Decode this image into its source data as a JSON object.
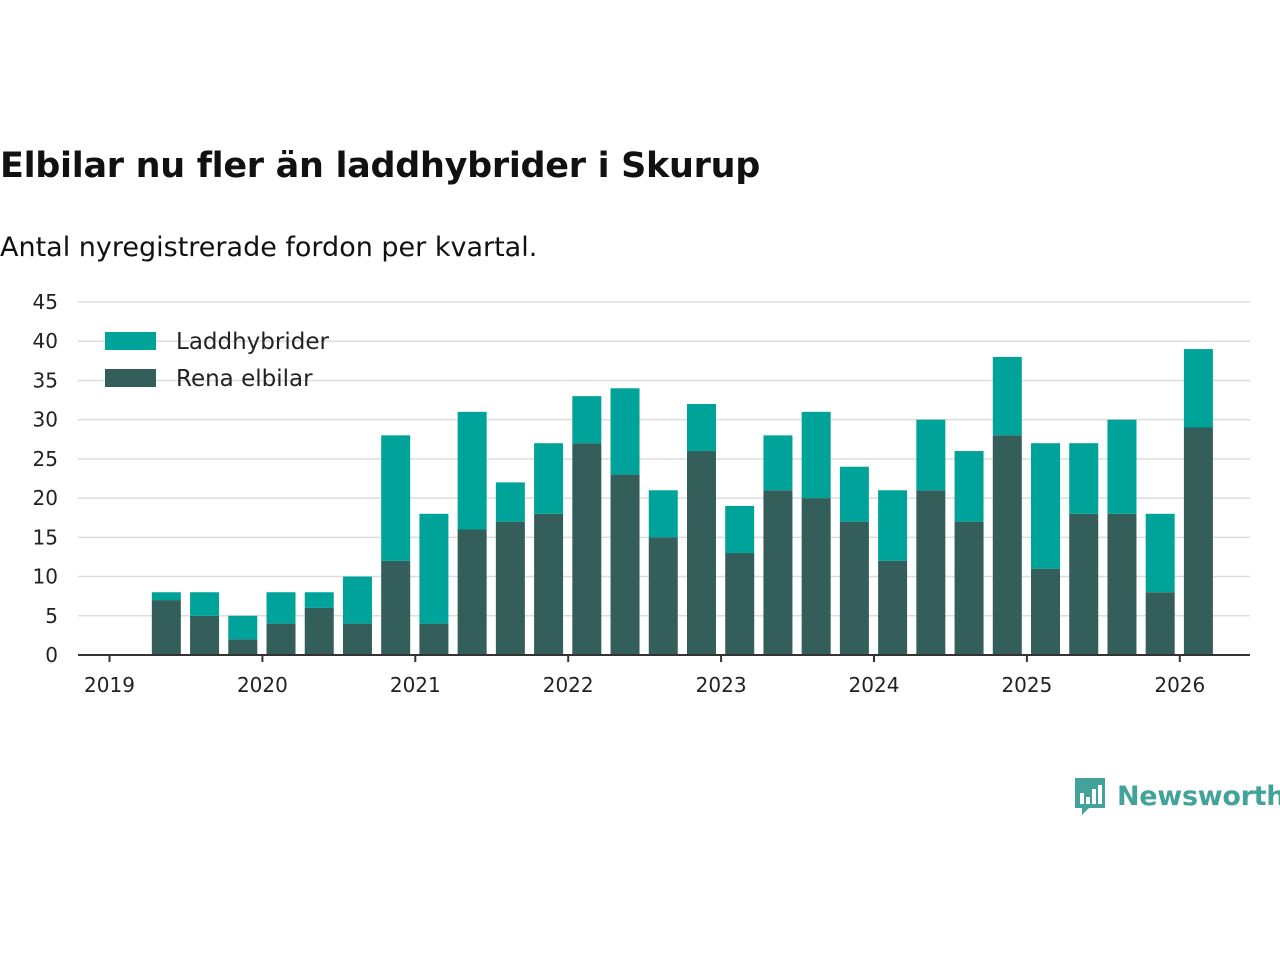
{
  "title": "Elbilar nu fler än laddhybrider i Skurup",
  "subtitle": "Antal nyregistrerade fordon per kvartal.",
  "brand": "Newsworthy",
  "colors": {
    "laddhybrider": "#00a39a",
    "elbilar": "#335e5a",
    "grid": "#dddddd",
    "axis": "#333333",
    "brand": "#43a39a"
  },
  "chart_data": {
    "type": "bar",
    "stacked": true,
    "title": "Elbilar nu fler än laddhybrider i Skurup",
    "subtitle": "Antal nyregistrerade fordon per kvartal.",
    "xlabel": "",
    "ylabel": "",
    "ylim": [
      0,
      45
    ],
    "yticks": [
      0,
      5,
      10,
      15,
      20,
      25,
      30,
      35,
      40,
      45
    ],
    "xticks": [
      "2019",
      "2020",
      "2021",
      "2022",
      "2023",
      "2024",
      "2025",
      "2026"
    ],
    "legend_position": "top-left",
    "categories": [
      "2019 Q2",
      "2019 Q3",
      "2019 Q4",
      "2020 Q1",
      "2020 Q2",
      "2020 Q3",
      "2020 Q4",
      "2021 Q1",
      "2021 Q2",
      "2021 Q3",
      "2021 Q4",
      "2022 Q1",
      "2022 Q2",
      "2022 Q3",
      "2022 Q4",
      "2023 Q1",
      "2023 Q2",
      "2023 Q3",
      "2023 Q4",
      "2024 Q1",
      "2024 Q2",
      "2024 Q3",
      "2024 Q4",
      "2025 Q1",
      "2025 Q2",
      "2025 Q3",
      "2025 Q4",
      "2026 Q1"
    ],
    "series": [
      {
        "name": "Rena elbilar",
        "color": "#335e5a",
        "values": [
          7,
          5,
          2,
          4,
          6,
          4,
          12,
          4,
          16,
          17,
          18,
          27,
          23,
          15,
          26,
          13,
          21,
          20,
          17,
          12,
          21,
          17,
          28,
          11,
          18,
          18,
          8,
          29
        ]
      },
      {
        "name": "Laddhybrider",
        "color": "#00a39a",
        "values": [
          1,
          3,
          3,
          4,
          2,
          6,
          16,
          14,
          15,
          5,
          9,
          6,
          11,
          6,
          6,
          6,
          7,
          11,
          7,
          9,
          9,
          9,
          10,
          16,
          9,
          12,
          10,
          10
        ]
      }
    ]
  }
}
